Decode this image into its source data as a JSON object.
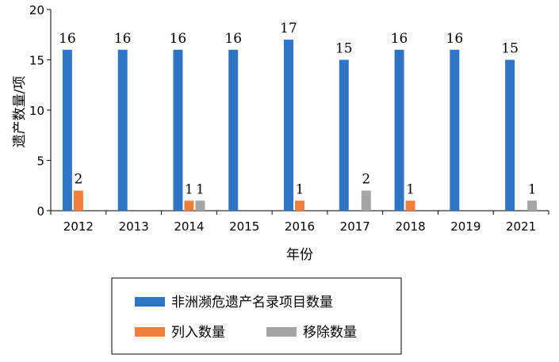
{
  "chart_data": {
    "type": "bar",
    "categories": [
      "2012",
      "2013",
      "2014",
      "2015",
      "2016",
      "2017",
      "2018",
      "2019",
      "2021"
    ],
    "series": [
      {
        "name": "非洲濒危遗产名录项目数量",
        "values": [
          16,
          16,
          16,
          16,
          17,
          15,
          16,
          16,
          15
        ],
        "color": "#2e75c6"
      },
      {
        "name": "列入数量",
        "values": [
          2,
          null,
          1,
          null,
          1,
          null,
          1,
          null,
          null
        ],
        "color": "#f07f3c"
      },
      {
        "name": "移除数量",
        "values": [
          null,
          null,
          1,
          null,
          null,
          2,
          null,
          null,
          1
        ],
        "color": "#a5a5a5"
      }
    ],
    "xlabel": "年份",
    "ylabel": "遗产数量/项",
    "ylim": [
      0,
      20
    ],
    "yticks": [
      "0",
      "5",
      "10",
      "15",
      "20"
    ],
    "grid": false,
    "legend_position": "bottom"
  }
}
